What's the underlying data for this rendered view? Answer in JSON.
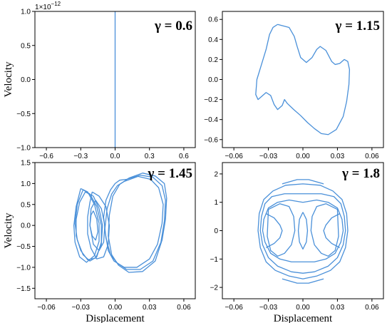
{
  "chart_data": [
    {
      "type": "line",
      "title": "γ = 0.6",
      "xlabel": "",
      "ylabel": "Velocity",
      "xlim": [
        -0.7,
        0.7
      ],
      "ylim": [
        -1.0,
        1.0
      ],
      "x_ticks": [
        -0.6,
        -0.3,
        0.0,
        0.3,
        0.6
      ],
      "x_tick_labels": [
        "−0.6",
        "−0.3",
        "0.0",
        "0.3",
        "0.6"
      ],
      "y_ticks": [
        -1.0,
        -0.5,
        0.0,
        0.5,
        1.0
      ],
      "y_tick_labels": [
        "−1.0",
        "−0.5",
        "0.0",
        "0.5",
        "1.0"
      ],
      "y_offset_label": "1e−12",
      "color": "#4a90d9",
      "series": [
        {
          "x": [
            0.0,
            0.0
          ],
          "y": [
            -1.0,
            1.0
          ]
        }
      ]
    },
    {
      "type": "line",
      "title": "γ = 1.15",
      "xlabel": "",
      "ylabel": "",
      "xlim": [
        -0.07,
        0.07
      ],
      "ylim": [
        -0.68,
        0.68
      ],
      "x_ticks": [
        -0.06,
        -0.03,
        0.0,
        0.03,
        0.06
      ],
      "x_tick_labels": [
        "−0.06",
        "−0.03",
        "0.00",
        "0.03",
        "0.06"
      ],
      "y_ticks": [
        -0.6,
        -0.4,
        -0.2,
        0.0,
        0.2,
        0.4,
        0.6
      ],
      "y_tick_labels": [
        "−0.6",
        "−0.4",
        "−0.2",
        "0.0",
        "0.2",
        "0.4",
        "0.6"
      ],
      "color": "#4a90d9",
      "series": [
        {
          "x": [
            -0.022,
            -0.012,
            -0.0075,
            -0.005,
            -0.002,
            0.003,
            0.008,
            0.012,
            0.015,
            0.02,
            0.025,
            0.028,
            0.032,
            0.036,
            0.039,
            0.0405,
            0.04,
            0.038,
            0.035,
            0.029,
            0.022,
            0.016,
            0.01,
            0.004,
            -0.002,
            -0.008,
            -0.0135,
            -0.016,
            -0.018,
            -0.022,
            -0.025,
            -0.028,
            -0.032,
            -0.035,
            -0.039,
            -0.041,
            -0.04,
            -0.036,
            -0.032,
            -0.03,
            -0.029,
            -0.026,
            -0.022
          ],
          "y": [
            0.55,
            0.52,
            0.43,
            0.33,
            0.22,
            0.17,
            0.22,
            0.3,
            0.33,
            0.29,
            0.18,
            0.15,
            0.16,
            0.2,
            0.18,
            0.1,
            -0.05,
            -0.22,
            -0.37,
            -0.5,
            -0.55,
            -0.54,
            -0.49,
            -0.43,
            -0.36,
            -0.3,
            -0.24,
            -0.2,
            -0.26,
            -0.3,
            -0.25,
            -0.16,
            -0.13,
            -0.16,
            -0.2,
            -0.15,
            0.0,
            0.15,
            0.3,
            0.4,
            0.45,
            0.52,
            0.55
          ]
        }
      ]
    },
    {
      "type": "line",
      "title": "γ = 1.45",
      "xlabel": "Displacement",
      "ylabel": "Velocity",
      "xlim": [
        -0.07,
        0.07
      ],
      "ylim": [
        -1.75,
        1.5
      ],
      "x_ticks": [
        -0.06,
        -0.03,
        0.0,
        0.03,
        0.06
      ],
      "x_tick_labels": [
        "−0.06",
        "−0.03",
        "0.00",
        "0.03",
        "0.06"
      ],
      "y_ticks": [
        -1.5,
        -1.0,
        -0.5,
        0.0,
        0.5,
        1.0,
        1.5
      ],
      "y_tick_labels": [
        "−1.5",
        "−1.0",
        "−0.5",
        "0.0",
        "0.5",
        "1.0",
        "1.5"
      ],
      "color": "#4a90d9",
      "series": [
        {
          "x": [
            0.01,
            0.022,
            0.033,
            0.041,
            0.044,
            0.043,
            0.04,
            0.033,
            0.022,
            0.01,
            0.002,
            -0.004,
            -0.008,
            -0.01,
            -0.008,
            -0.004,
            0.0,
            0.004,
            0.01
          ],
          "y": [
            1.1,
            1.2,
            1.15,
            0.95,
            0.6,
            0.1,
            -0.4,
            -0.85,
            -1.05,
            -1.05,
            -0.9,
            -0.7,
            -0.3,
            0.2,
            0.6,
            0.85,
            1.0,
            1.08,
            1.1
          ]
        },
        {
          "x": [
            0.008,
            0.02,
            0.031,
            0.038,
            0.042,
            0.041,
            0.037,
            0.03,
            0.019,
            0.008,
            -0.001,
            -0.006,
            -0.009,
            -0.007,
            -0.003,
            0.002,
            0.008
          ],
          "y": [
            1.05,
            1.17,
            1.1,
            0.9,
            0.5,
            0.05,
            -0.45,
            -0.8,
            -1.0,
            -1.0,
            -0.85,
            -0.6,
            -0.1,
            0.4,
            0.75,
            0.95,
            1.05
          ]
        },
        {
          "x": [
            0.012,
            0.024,
            0.035,
            0.043,
            0.045,
            0.044,
            0.041,
            0.035,
            0.024,
            0.012,
            0.003,
            -0.003,
            -0.006,
            -0.005,
            -0.002,
            0.004,
            0.012
          ],
          "y": [
            1.13,
            1.25,
            1.18,
            1.0,
            0.65,
            0.15,
            -0.35,
            -0.85,
            -1.1,
            -1.12,
            -0.95,
            -0.7,
            -0.25,
            0.25,
            0.7,
            0.98,
            1.13
          ]
        },
        {
          "x": [
            -0.028,
            -0.022,
            -0.016,
            -0.012,
            -0.012,
            -0.016,
            -0.022,
            -0.028,
            -0.033,
            -0.035,
            -0.033,
            -0.028
          ],
          "y": [
            0.85,
            0.75,
            0.45,
            0.0,
            -0.4,
            -0.75,
            -0.85,
            -0.7,
            -0.35,
            0.05,
            0.5,
            0.85
          ]
        },
        {
          "x": [
            -0.026,
            -0.019,
            -0.014,
            -0.011,
            -0.012,
            -0.017,
            -0.024,
            -0.03,
            -0.034,
            -0.034,
            -0.031,
            -0.026
          ],
          "y": [
            0.8,
            0.7,
            0.4,
            0.0,
            -0.45,
            -0.78,
            -0.82,
            -0.6,
            -0.25,
            0.15,
            0.55,
            0.8
          ]
        },
        {
          "x": [
            -0.03,
            -0.024,
            -0.018,
            -0.014,
            -0.014,
            -0.018,
            -0.025,
            -0.031,
            -0.035,
            -0.036,
            -0.034,
            -0.03
          ],
          "y": [
            0.88,
            0.8,
            0.5,
            0.05,
            -0.38,
            -0.72,
            -0.88,
            -0.75,
            -0.4,
            0.0,
            0.45,
            0.88
          ]
        },
        {
          "x": [
            -0.02,
            -0.014,
            -0.008,
            -0.005,
            -0.006,
            -0.01,
            -0.016,
            -0.021,
            -0.024,
            -0.024,
            -0.022,
            -0.02
          ],
          "y": [
            0.8,
            0.7,
            0.45,
            0.0,
            -0.45,
            -0.75,
            -0.8,
            -0.55,
            -0.2,
            0.2,
            0.55,
            0.8
          ]
        },
        {
          "x": [
            -0.017,
            -0.012,
            -0.009,
            -0.01,
            -0.014,
            -0.019,
            -0.022,
            -0.021,
            -0.017
          ],
          "y": [
            0.6,
            0.4,
            0.0,
            -0.4,
            -0.6,
            -0.45,
            0.0,
            0.4,
            0.6
          ]
        },
        {
          "x": [
            -0.019,
            -0.016,
            -0.015,
            -0.017,
            -0.02,
            -0.022,
            -0.021,
            -0.019
          ],
          "y": [
            0.35,
            0.15,
            -0.15,
            -0.35,
            -0.25,
            0.0,
            0.25,
            0.35
          ]
        }
      ]
    },
    {
      "type": "line",
      "title": "γ = 1.8",
      "xlabel": "Displacement",
      "ylabel": "",
      "xlim": [
        -0.07,
        0.07
      ],
      "ylim": [
        -2.4,
        2.4
      ],
      "x_ticks": [
        -0.06,
        -0.03,
        0.0,
        0.03,
        0.06
      ],
      "x_tick_labels": [
        "−0.06",
        "−0.03",
        "0.00",
        "0.03",
        "0.06"
      ],
      "y_ticks": [
        -2,
        -1,
        0,
        1,
        2
      ],
      "y_tick_labels": [
        "−2",
        "−1",
        "0",
        "1",
        "2"
      ],
      "color": "#4a90d9",
      "series": [
        {
          "x": [
            0.0,
            0.015,
            0.026,
            0.034,
            0.038,
            0.039,
            0.037,
            0.032,
            0.024,
            0.012,
            0.0,
            -0.012,
            -0.024,
            -0.032,
            -0.037,
            -0.039,
            -0.038,
            -0.034,
            -0.026,
            -0.015,
            0.0
          ],
          "y": [
            1.65,
            1.6,
            1.4,
            1.1,
            0.6,
            0.0,
            -0.6,
            -1.1,
            -1.4,
            -1.6,
            -1.7,
            -1.6,
            -1.4,
            -1.1,
            -0.6,
            0.0,
            0.6,
            1.1,
            1.4,
            1.6,
            1.65
          ]
        },
        {
          "x": [
            0.0,
            0.016,
            0.027,
            0.033,
            0.036,
            0.037,
            0.035,
            0.03,
            0.022,
            0.01,
            0.0,
            -0.01,
            -0.022,
            -0.03,
            -0.035,
            -0.037,
            -0.036,
            -0.033,
            -0.027,
            -0.016,
            0.0
          ],
          "y": [
            1.3,
            1.3,
            1.2,
            0.95,
            0.5,
            0.0,
            -0.5,
            -0.95,
            -1.25,
            -1.45,
            -1.5,
            -1.45,
            -1.25,
            -0.95,
            -0.5,
            0.0,
            0.5,
            0.95,
            1.2,
            1.3,
            1.3
          ]
        },
        {
          "x": [
            0.0,
            0.012,
            0.022,
            0.03,
            0.034,
            0.035,
            0.033,
            0.028,
            0.02,
            0.01,
            0.0,
            -0.01,
            -0.02,
            -0.028,
            -0.033,
            -0.035,
            -0.034,
            -0.03,
            -0.022,
            -0.012,
            0.0
          ],
          "y": [
            1.0,
            1.08,
            1.0,
            0.8,
            0.4,
            0.0,
            -0.4,
            -0.8,
            -1.0,
            -1.1,
            -1.1,
            -1.1,
            -1.0,
            -0.8,
            -0.4,
            0.0,
            0.4,
            0.8,
            1.0,
            1.08,
            1.0
          ]
        },
        {
          "x": [
            -0.032,
            -0.025,
            -0.02,
            -0.018,
            -0.02,
            -0.025,
            -0.032
          ],
          "y": [
            0.6,
            0.45,
            0.2,
            0.0,
            -0.25,
            -0.45,
            -0.6
          ]
        },
        {
          "x": [
            -0.03,
            -0.02,
            -0.012,
            -0.008,
            -0.007,
            -0.01,
            -0.016,
            -0.022,
            -0.028,
            -0.031,
            -0.03
          ],
          "y": [
            0.75,
            0.95,
            0.85,
            0.5,
            0.0,
            -0.5,
            -0.8,
            -0.9,
            -0.7,
            -0.2,
            0.75
          ]
        },
        {
          "x": [
            0.032,
            0.025,
            0.02,
            0.018,
            0.02,
            0.025,
            0.032
          ],
          "y": [
            0.6,
            0.45,
            0.2,
            0.0,
            -0.25,
            -0.45,
            -0.6
          ]
        },
        {
          "x": [
            0.03,
            0.02,
            0.012,
            0.008,
            0.007,
            0.01,
            0.016,
            0.022,
            0.028,
            0.031,
            0.03
          ],
          "y": [
            0.75,
            0.95,
            0.85,
            0.5,
            0.0,
            -0.5,
            -0.8,
            -0.9,
            -0.7,
            -0.2,
            0.75
          ]
        },
        {
          "x": [
            0.0,
            0.003,
            0.004,
            0.003,
            0.0,
            -0.003,
            -0.004,
            -0.003,
            0.0
          ],
          "y": [
            0.65,
            0.4,
            0.0,
            -0.4,
            -0.65,
            -0.4,
            0.0,
            0.4,
            0.65
          ]
        },
        {
          "x": [
            -0.018,
            -0.005,
            0.005,
            0.018
          ],
          "y": [
            1.65,
            1.8,
            1.8,
            1.65
          ]
        },
        {
          "x": [
            -0.018,
            -0.005,
            0.005,
            0.018
          ],
          "y": [
            -1.7,
            -1.85,
            -1.85,
            -1.7
          ]
        }
      ]
    }
  ]
}
